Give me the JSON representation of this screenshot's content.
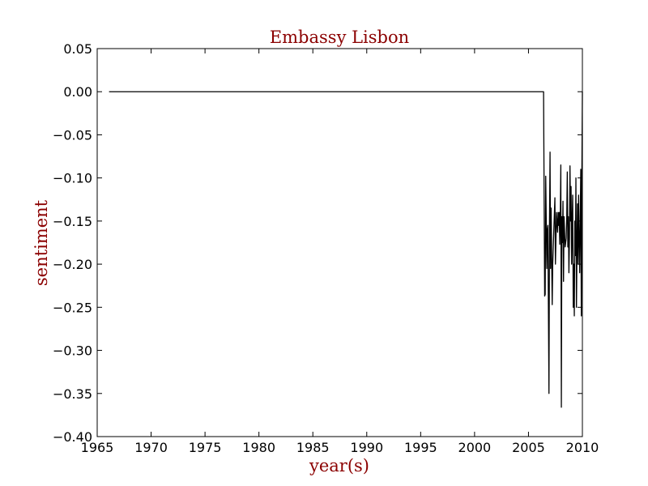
{
  "chart_data": {
    "type": "line",
    "title": "Embassy Lisbon",
    "xlabel": "year(s)",
    "ylabel": "sentiment",
    "xlim": [
      1965,
      2010
    ],
    "ylim": [
      -0.4,
      0.05
    ],
    "xticks": [
      "1965",
      "1970",
      "1975",
      "1980",
      "1985",
      "1990",
      "1995",
      "2000",
      "2005",
      "2010"
    ],
    "yticks": [
      "0.05",
      "0.00",
      "−0.05",
      "−0.10",
      "−0.15",
      "−0.20",
      "−0.25",
      "−0.30",
      "−0.35",
      "−0.40"
    ],
    "grid": false,
    "line_color": "#000000",
    "series": [
      {
        "x": [
          1966.1,
          2006.4,
          2006.5,
          2006.55,
          2006.6,
          2006.7,
          2006.75,
          2006.8,
          2006.9,
          2006.95,
          2007.0,
          2007.05,
          2007.1,
          2007.15,
          2007.2,
          2007.25,
          2007.3,
          2007.35,
          2007.45,
          2007.5,
          2007.6,
          2007.7,
          2007.75,
          2007.8,
          2007.85,
          2007.9,
          2007.95,
          2008.0,
          2008.05,
          2008.1,
          2008.15,
          2008.2,
          2008.25,
          2008.3,
          2008.4,
          2008.5,
          2008.55,
          2008.6,
          2008.65,
          2008.7,
          2008.75,
          2008.8,
          2008.85,
          2008.9,
          2008.95,
          2009.0,
          2009.05,
          2009.1,
          2009.15,
          2009.2,
          2009.25,
          2009.3,
          2009.35,
          2009.4,
          2009.45,
          2009.5,
          2009.55,
          2009.6,
          2009.65,
          2009.7,
          2009.75,
          2009.8,
          2009.85,
          2009.9,
          2009.95,
          2010.0
        ],
        "y": [
          0.0,
          0.0,
          -0.237,
          -0.235,
          -0.098,
          -0.205,
          -0.16,
          -0.155,
          -0.35,
          -0.153,
          -0.07,
          -0.205,
          -0.135,
          -0.19,
          -0.247,
          -0.2,
          -0.18,
          -0.16,
          -0.123,
          -0.2,
          -0.14,
          -0.163,
          -0.14,
          -0.155,
          -0.14,
          -0.177,
          -0.145,
          -0.085,
          -0.366,
          -0.145,
          -0.175,
          -0.127,
          -0.22,
          -0.145,
          -0.18,
          -0.17,
          -0.145,
          -0.093,
          -0.18,
          -0.145,
          -0.21,
          -0.17,
          -0.086,
          -0.15,
          -0.11,
          -0.2,
          -0.15,
          -0.12,
          -0.25,
          -0.2,
          -0.26,
          -0.15,
          -0.19,
          -0.1,
          -0.25,
          -0.18,
          -0.13,
          -0.2,
          -0.12,
          -0.17,
          -0.21,
          -0.15,
          -0.09,
          -0.26,
          -0.1,
          0.0
        ]
      }
    ]
  }
}
